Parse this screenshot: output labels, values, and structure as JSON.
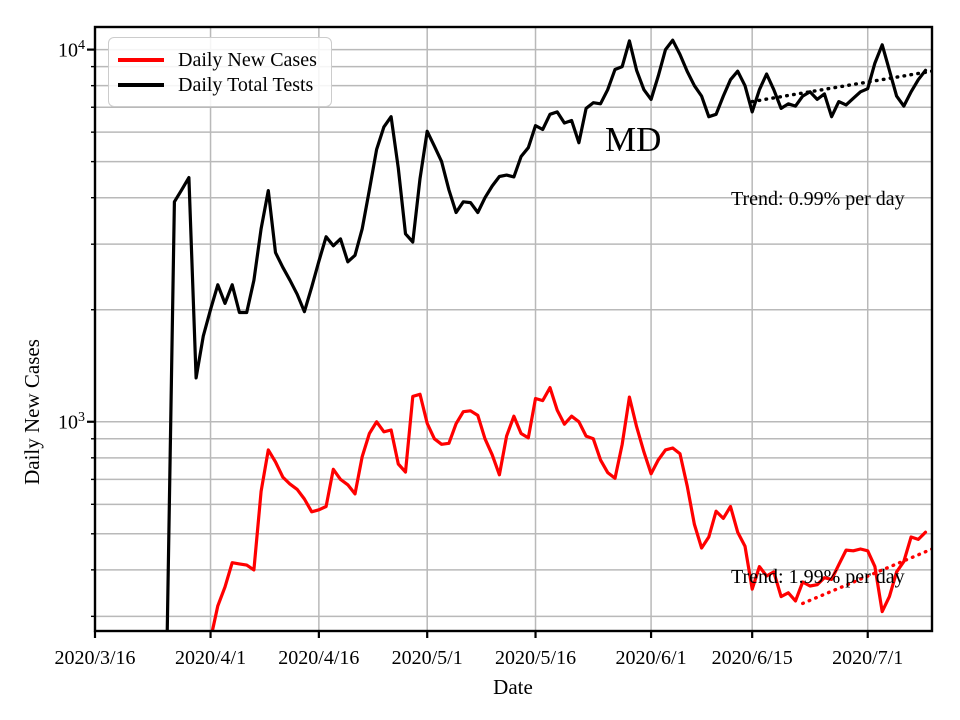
{
  "annotations": {
    "state_label": "MD",
    "trend_black_label": "Trend: 0.99% per day",
    "trend_red_label": "Trend: 1.99% per day"
  },
  "axes": {
    "xlabel": "Date",
    "ylabel": "Daily New Cases",
    "y_ticks": [
      {
        "base": "10",
        "exp": "4",
        "value": 10000
      },
      {
        "base": "10",
        "exp": "3",
        "value": 1000
      }
    ],
    "x_ticks": [
      {
        "label": "2020/3/16",
        "day": 0
      },
      {
        "label": "2020/4/1",
        "day": 16
      },
      {
        "label": "2020/4/16",
        "day": 31
      },
      {
        "label": "2020/5/1",
        "day": 46
      },
      {
        "label": "2020/5/16",
        "day": 61
      },
      {
        "label": "2020/6/1",
        "day": 77
      },
      {
        "label": "2020/6/15",
        "day": 91
      },
      {
        "label": "2020/7/1",
        "day": 107
      }
    ]
  },
  "colors": {
    "cases": "#ff0000",
    "tests": "#000000",
    "grid": "#b9b9b9",
    "spine": "#000000",
    "background": "#ffffff",
    "legend_border": "#cccccc"
  },
  "chart_data": {
    "type": "line",
    "yscale": "log",
    "xlabel": "Date",
    "ylabel": "Daily New Cases",
    "ylim": [
      274,
      11500
    ],
    "x_start_date": "2020-03-16",
    "xlim_days": [
      0,
      115.9
    ],
    "grid": true,
    "y_minor_gridlines": [
      300,
      400,
      500,
      600,
      700,
      800,
      900,
      2000,
      3000,
      4000,
      5000,
      6000,
      7000,
      8000,
      9000
    ],
    "y_major_gridlines": [
      1000,
      10000
    ],
    "legend_position": "upper left",
    "series": [
      {
        "name": "Daily New Cases",
        "color": "#ff0000",
        "start_date": "2020-04-01",
        "values": [
          260,
          320,
          360,
          418,
          415,
          412,
          400,
          650,
          840,
          780,
          710,
          680,
          658,
          620,
          573,
          580,
          592,
          745,
          700,
          677,
          640,
          806,
          930,
          1000,
          940,
          950,
          770,
          733,
          1170,
          1185,
          990,
          900,
          870,
          875,
          988,
          1064,
          1070,
          1040,
          900,
          815,
          720,
          915,
          1035,
          930,
          905,
          1155,
          1140,
          1235,
          1075,
          985,
          1035,
          1000,
          915,
          900,
          790,
          730,
          705,
          870,
          1165,
          970,
          830,
          725,
          790,
          840,
          850,
          820,
          672,
          530,
          458,
          490,
          575,
          550,
          592,
          505,
          463,
          355,
          408,
          385,
          395,
          339,
          347,
          330,
          371,
          362,
          365,
          381,
          377,
          413,
          452,
          450,
          455,
          450,
          408,
          309,
          339,
          395,
          421,
          490,
          483,
          505
        ]
      },
      {
        "name": "Daily Total Tests",
        "color": "#000000",
        "start_date": "2020-03-26",
        "values": [
          270,
          3900,
          4200,
          4530,
          1312,
          1700,
          2000,
          2333,
          2080,
          2333,
          1966,
          1966,
          2400,
          3300,
          4180,
          2847,
          2600,
          2400,
          2200,
          1976,
          2300,
          2700,
          3140,
          2970,
          3100,
          2690,
          2800,
          3300,
          4200,
          5390,
          6200,
          6600,
          4800,
          3200,
          3040,
          4500,
          6030,
          5500,
          5000,
          4200,
          3650,
          3900,
          3880,
          3650,
          4000,
          4300,
          4560,
          4600,
          4550,
          5160,
          5450,
          6250,
          6100,
          6700,
          6800,
          6350,
          6450,
          5620,
          6950,
          7200,
          7150,
          7800,
          8840,
          9000,
          10550,
          8800,
          7800,
          7350,
          8500,
          10000,
          10600,
          9700,
          8740,
          8000,
          7500,
          6600,
          6700,
          7500,
          8300,
          8750,
          8000,
          6800,
          7800,
          8600,
          7800,
          6950,
          7150,
          7050,
          7500,
          7700,
          7350,
          7600,
          6600,
          7250,
          7100,
          7400,
          7700,
          7850,
          9200,
          10300,
          8800,
          7500,
          7050,
          7700,
          8300,
          8800
        ]
      }
    ],
    "trend_lines": [
      {
        "label": "Trend: 0.99% per day",
        "rate_percent_per_day": 0.99,
        "color": "#000000",
        "start_date": "2020-06-15",
        "start_value": 7250,
        "end_value": 8750
      },
      {
        "label": "Trend: 1.99% per day",
        "rate_percent_per_day": 1.99,
        "color": "#ff0000",
        "start_date": "2020-06-22",
        "start_value": 325,
        "end_value": 455
      }
    ]
  },
  "legend": {
    "entries": [
      {
        "label": "Daily New Cases",
        "color": "#ff0000"
      },
      {
        "label": "Daily Total Tests",
        "color": "#000000"
      }
    ]
  }
}
